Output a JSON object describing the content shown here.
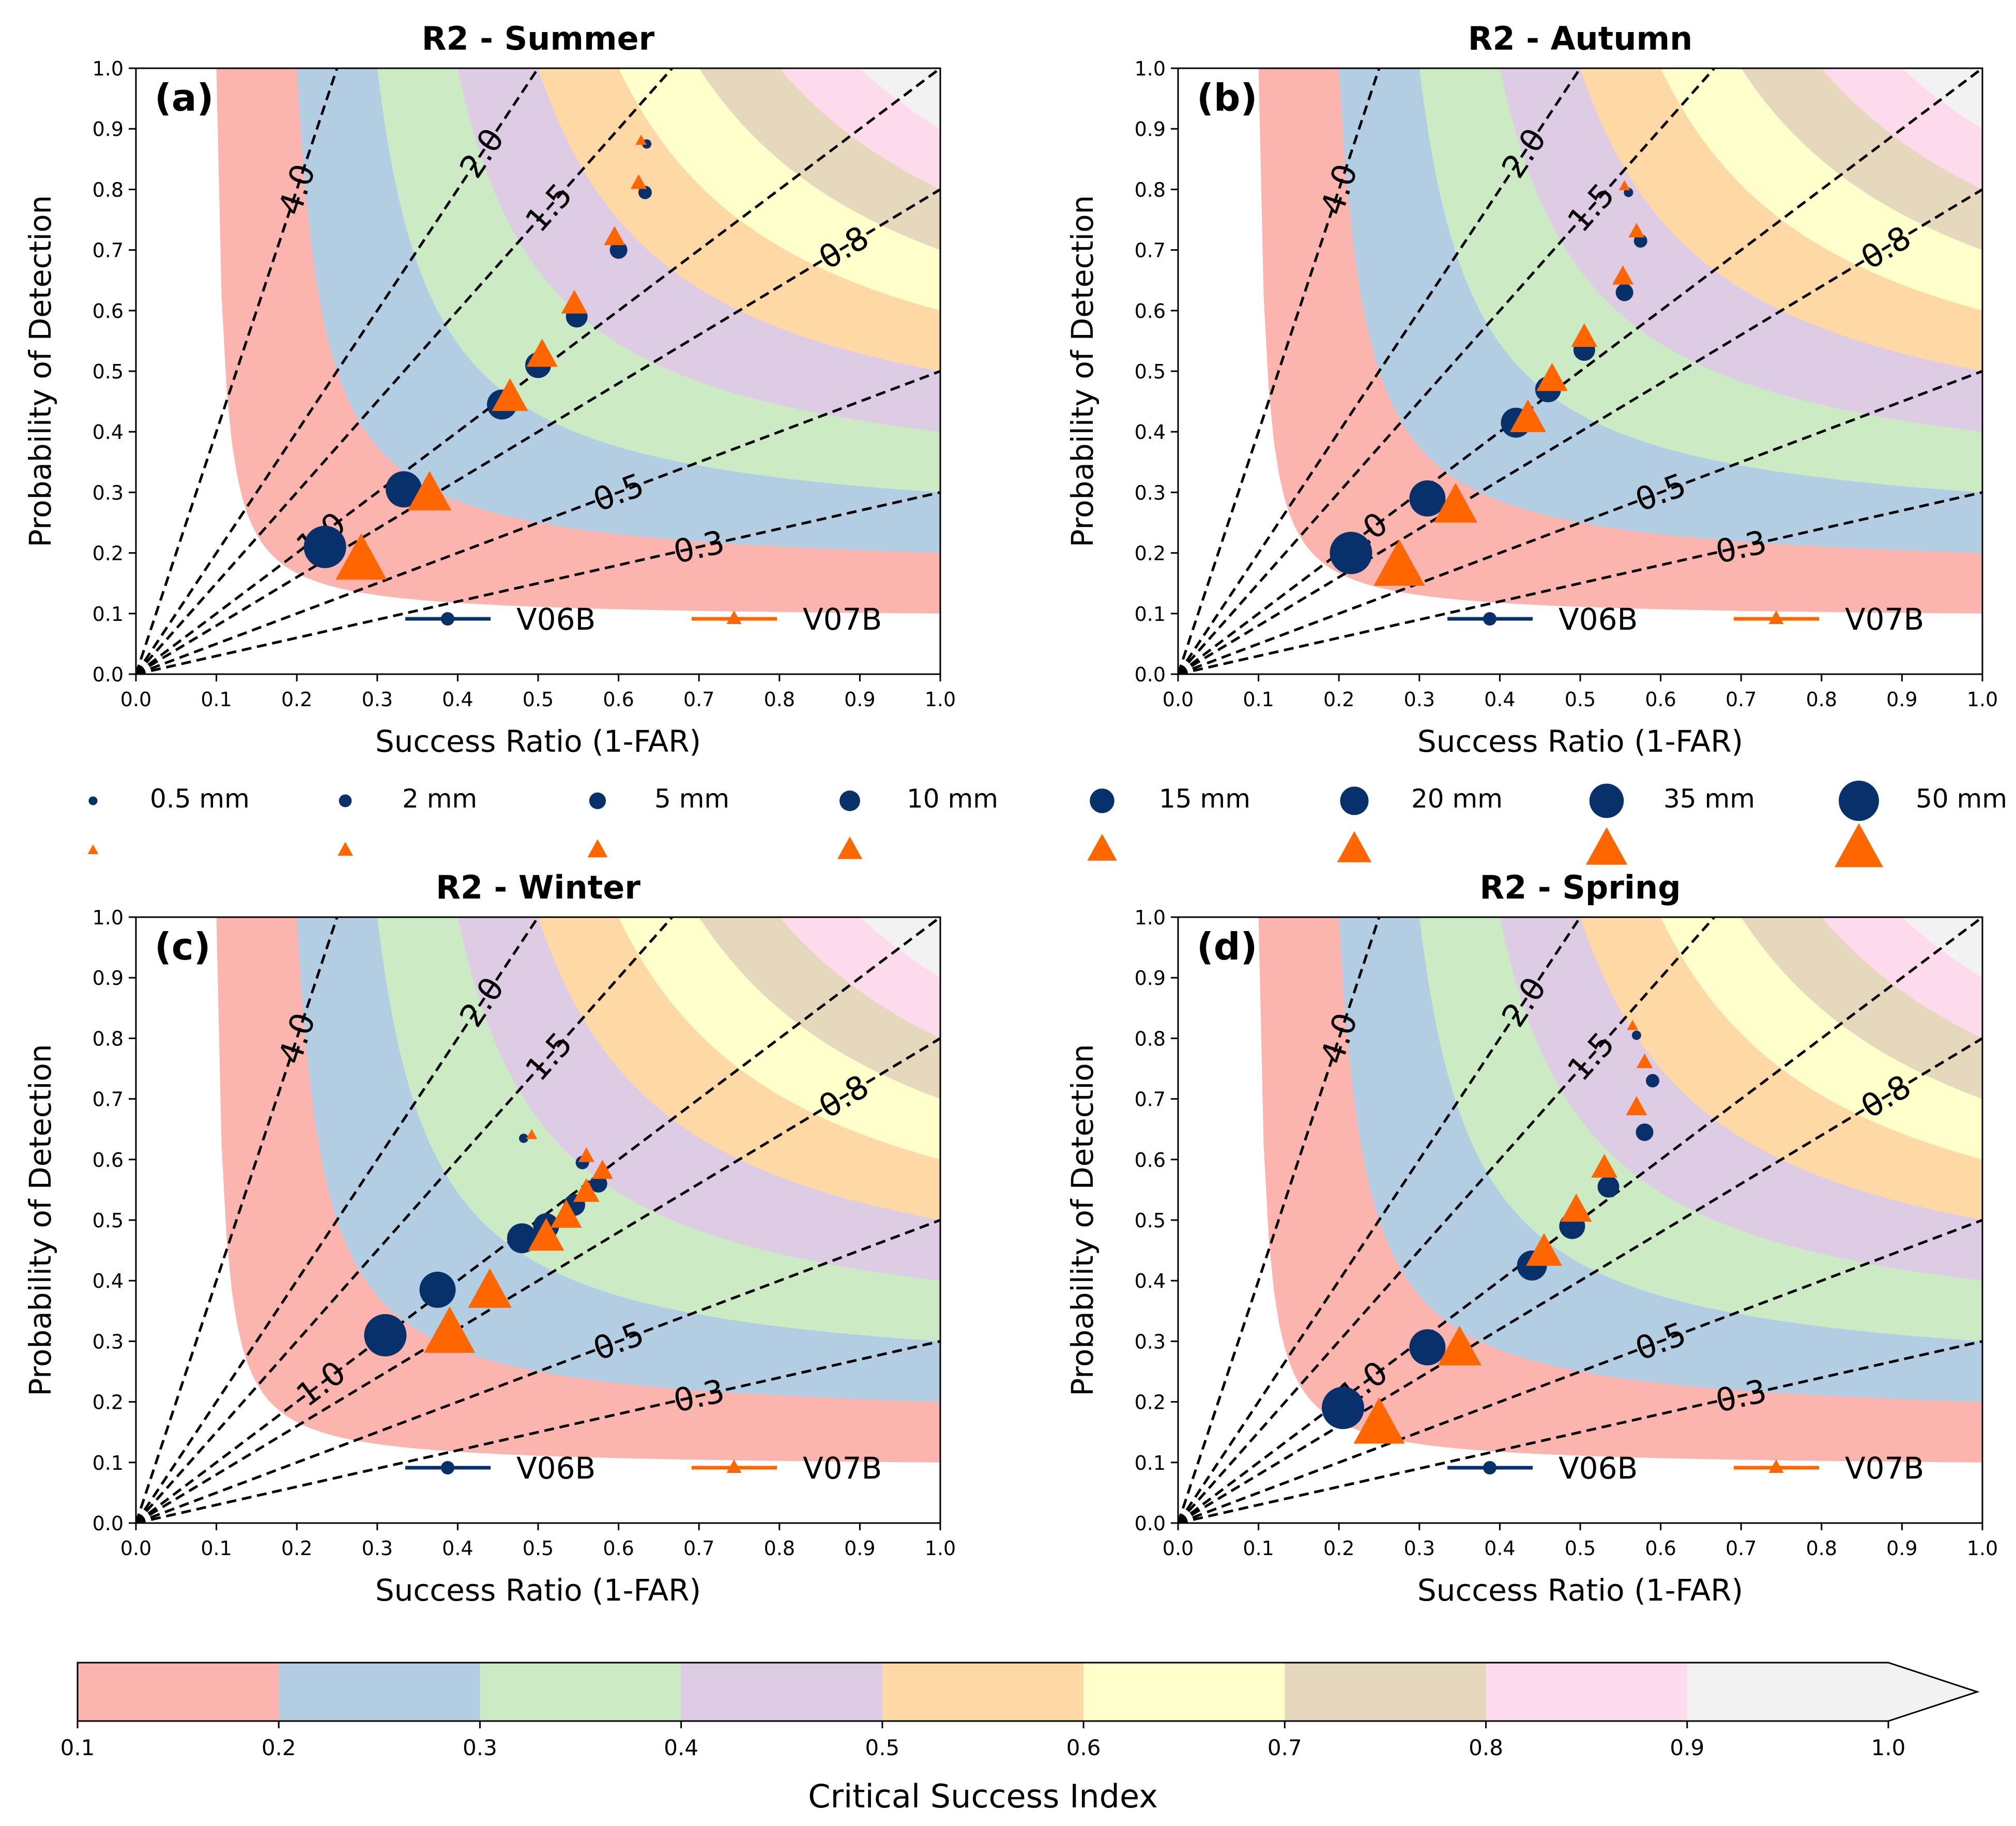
{
  "figure": {
    "xlabel": "Success Ratio (1-FAR)",
    "ylabel": "Probability of Detection",
    "axis_ticks": [
      "0.0",
      "0.1",
      "0.2",
      "0.3",
      "0.4",
      "0.5",
      "0.6",
      "0.7",
      "0.8",
      "0.9",
      "1.0"
    ],
    "bias_lines": [
      {
        "value": 4.0,
        "label": "4.0"
      },
      {
        "value": 2.0,
        "label": "2.0"
      },
      {
        "value": 1.5,
        "label": "1.5"
      },
      {
        "value": 1.0,
        "label": "1.0"
      },
      {
        "value": 0.8,
        "label": "0.8"
      },
      {
        "value": 0.5,
        "label": "0.5"
      },
      {
        "value": 0.3,
        "label": "0.3"
      }
    ],
    "series_names": [
      "V06B",
      "V07B"
    ],
    "colors": {
      "V06B": "#08306b",
      "V07B": "#ff6600"
    },
    "thresholds": [
      "0.5 mm",
      "2 mm",
      "5 mm",
      "10 mm",
      "15 mm",
      "20 mm",
      "35 mm",
      "50 mm"
    ],
    "colorbar": {
      "label": "Critical Success Index",
      "ticks": [
        "0.1",
        "0.2",
        "0.3",
        "0.4",
        "0.5",
        "0.6",
        "0.7",
        "0.8",
        "0.9",
        "1.0"
      ],
      "colors": [
        "#fbb4ae",
        "#b3cde3",
        "#ccebc5",
        "#decbe4",
        "#fed9a6",
        "#ffffcc",
        "#e5d8bd",
        "#fddaec",
        "#f2f2f2"
      ]
    }
  },
  "chart_data": [
    {
      "type": "scatter",
      "title": "R2 - Summer",
      "panel_label": "(a)",
      "xlabel": "Success Ratio (1-FAR)",
      "ylabel": "Probability of Detection",
      "xlim": [
        0,
        1
      ],
      "ylim": [
        0,
        1
      ],
      "categories": [
        "0.5 mm",
        "2 mm",
        "5 mm",
        "10 mm",
        "15 mm",
        "20 mm",
        "35 mm",
        "50 mm"
      ],
      "series": [
        {
          "name": "V06B",
          "x": [
            0.635,
            0.633,
            0.6,
            0.548,
            0.5,
            0.455,
            0.333,
            0.235
          ],
          "y": [
            0.875,
            0.795,
            0.7,
            0.59,
            0.51,
            0.445,
            0.305,
            0.21
          ]
        },
        {
          "name": "V07B",
          "x": [
            0.628,
            0.625,
            0.595,
            0.545,
            0.505,
            0.465,
            0.365,
            0.28
          ],
          "y": [
            0.88,
            0.81,
            0.72,
            0.61,
            0.525,
            0.455,
            0.295,
            0.185
          ]
        }
      ]
    },
    {
      "type": "scatter",
      "title": "R2 - Autumn",
      "panel_label": "(b)",
      "xlabel": "Success Ratio (1-FAR)",
      "ylabel": "Probability of Detection",
      "xlim": [
        0,
        1
      ],
      "ylim": [
        0,
        1
      ],
      "categories": [
        "0.5 mm",
        "2 mm",
        "5 mm",
        "10 mm",
        "15 mm",
        "20 mm",
        "35 mm",
        "50 mm"
      ],
      "series": [
        {
          "name": "V06B",
          "x": [
            0.56,
            0.575,
            0.555,
            0.505,
            0.46,
            0.42,
            0.31,
            0.215
          ],
          "y": [
            0.795,
            0.715,
            0.63,
            0.535,
            0.47,
            0.415,
            0.29,
            0.2
          ]
        },
        {
          "name": "V07B",
          "x": [
            0.555,
            0.57,
            0.553,
            0.505,
            0.465,
            0.435,
            0.345,
            0.275
          ],
          "y": [
            0.805,
            0.73,
            0.655,
            0.555,
            0.485,
            0.42,
            0.275,
            0.175
          ]
        }
      ]
    },
    {
      "type": "scatter",
      "title": "R2 - Winter",
      "panel_label": "(c)",
      "xlabel": "Success Ratio (1-FAR)",
      "ylabel": "Probability of Detection",
      "xlim": [
        0,
        1
      ],
      "ylim": [
        0,
        1
      ],
      "categories": [
        "0.5 mm",
        "2 mm",
        "5 mm",
        "10 mm",
        "15 mm",
        "20 mm",
        "35 mm",
        "50 mm"
      ],
      "series": [
        {
          "name": "V06B",
          "x": [
            0.482,
            0.555,
            0.575,
            0.545,
            0.51,
            0.48,
            0.375,
            0.31
          ],
          "y": [
            0.635,
            0.595,
            0.56,
            0.525,
            0.49,
            0.47,
            0.385,
            0.31
          ]
        },
        {
          "name": "V07B",
          "x": [
            0.492,
            0.56,
            0.58,
            0.56,
            0.535,
            0.51,
            0.44,
            0.39
          ],
          "y": [
            0.64,
            0.605,
            0.58,
            0.545,
            0.505,
            0.47,
            0.38,
            0.31
          ]
        }
      ]
    },
    {
      "type": "scatter",
      "title": "R2 - Spring",
      "panel_label": "(d)",
      "xlabel": "Success Ratio (1-FAR)",
      "ylabel": "Probability of Detection",
      "xlim": [
        0,
        1
      ],
      "ylim": [
        0,
        1
      ],
      "categories": [
        "0.5 mm",
        "2 mm",
        "5 mm",
        "10 mm",
        "15 mm",
        "20 mm",
        "35 mm",
        "50 mm"
      ],
      "series": [
        {
          "name": "V06B",
          "x": [
            0.57,
            0.59,
            0.58,
            0.535,
            0.49,
            0.44,
            0.31,
            0.205
          ],
          "y": [
            0.805,
            0.73,
            0.645,
            0.555,
            0.49,
            0.425,
            0.29,
            0.19
          ]
        },
        {
          "name": "V07B",
          "x": [
            0.565,
            0.58,
            0.57,
            0.53,
            0.495,
            0.455,
            0.35,
            0.25
          ],
          "y": [
            0.82,
            0.76,
            0.685,
            0.585,
            0.515,
            0.445,
            0.285,
            0.16
          ]
        }
      ]
    }
  ]
}
